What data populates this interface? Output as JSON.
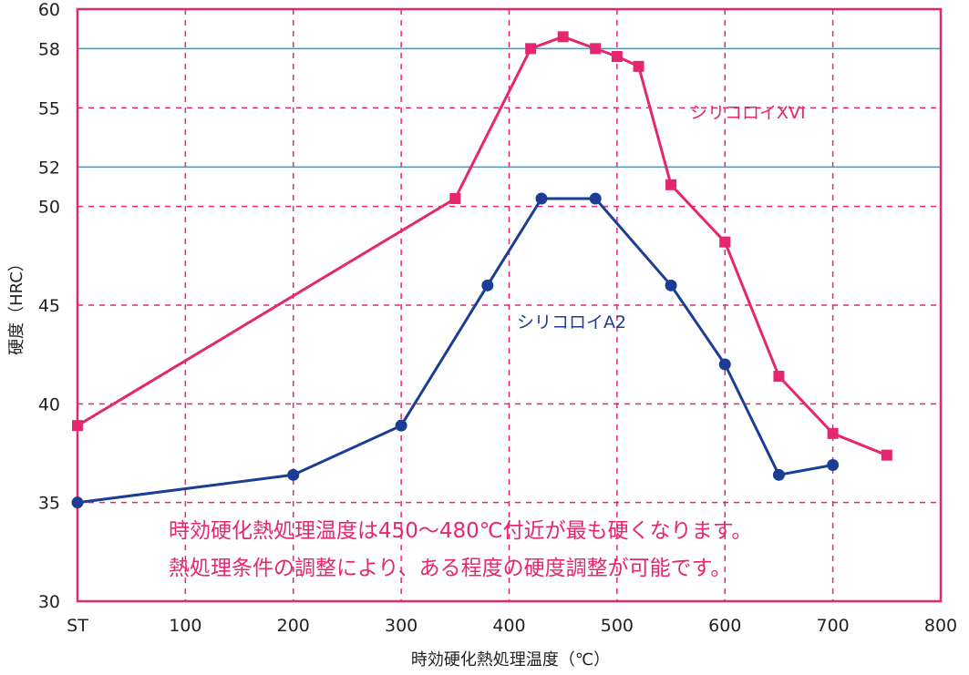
{
  "chart_data": {
    "type": "line",
    "xlabel": "時効硬化熱処理温度（℃）",
    "ylabel": "硬度（HRC）",
    "xlim": [
      0,
      800
    ],
    "ylim": [
      30,
      60
    ],
    "x_ticks": [
      {
        "value": 0,
        "label": "ST"
      },
      {
        "value": 100,
        "label": "100"
      },
      {
        "value": 200,
        "label": "200"
      },
      {
        "value": 300,
        "label": "300"
      },
      {
        "value": 400,
        "label": "400"
      },
      {
        "value": 500,
        "label": "500"
      },
      {
        "value": 600,
        "label": "600"
      },
      {
        "value": 700,
        "label": "700"
      },
      {
        "value": 800,
        "label": "800"
      }
    ],
    "y_ticks": [
      30,
      35,
      40,
      45,
      50,
      52,
      55,
      58,
      60
    ],
    "reference_lines_y": [
      52,
      58
    ],
    "grid": true,
    "series": [
      {
        "name": "シリコロイXVI",
        "color": "#e5276f",
        "marker": "square",
        "x": [
          0,
          350,
          420,
          450,
          480,
          500,
          520,
          550,
          600,
          650,
          700,
          750
        ],
        "y": [
          38.9,
          50.4,
          58.0,
          58.6,
          58.0,
          57.6,
          57.1,
          51.1,
          48.2,
          41.4,
          38.5,
          37.4
        ]
      },
      {
        "name": "シリコロイA2",
        "color": "#1b3d95",
        "marker": "circle",
        "x": [
          0,
          200,
          300,
          380,
          430,
          480,
          550,
          600,
          650,
          700
        ],
        "y": [
          35.0,
          36.4,
          38.9,
          46.0,
          50.4,
          50.4,
          46.0,
          42.0,
          36.4,
          36.9
        ]
      }
    ],
    "annotations": [
      "時効硬化熱処理温度は450～480℃付近が最も硬くなります。",
      "熱処理条件の調整により、ある程度の硬度調整が可能です。"
    ]
  },
  "colors": {
    "frame": "#e5276f",
    "grid": "#e5276f",
    "reference_line": "#1ea5d8",
    "text": "#231f20",
    "note": "#e5276f",
    "label_a2": "#1b3d95"
  }
}
